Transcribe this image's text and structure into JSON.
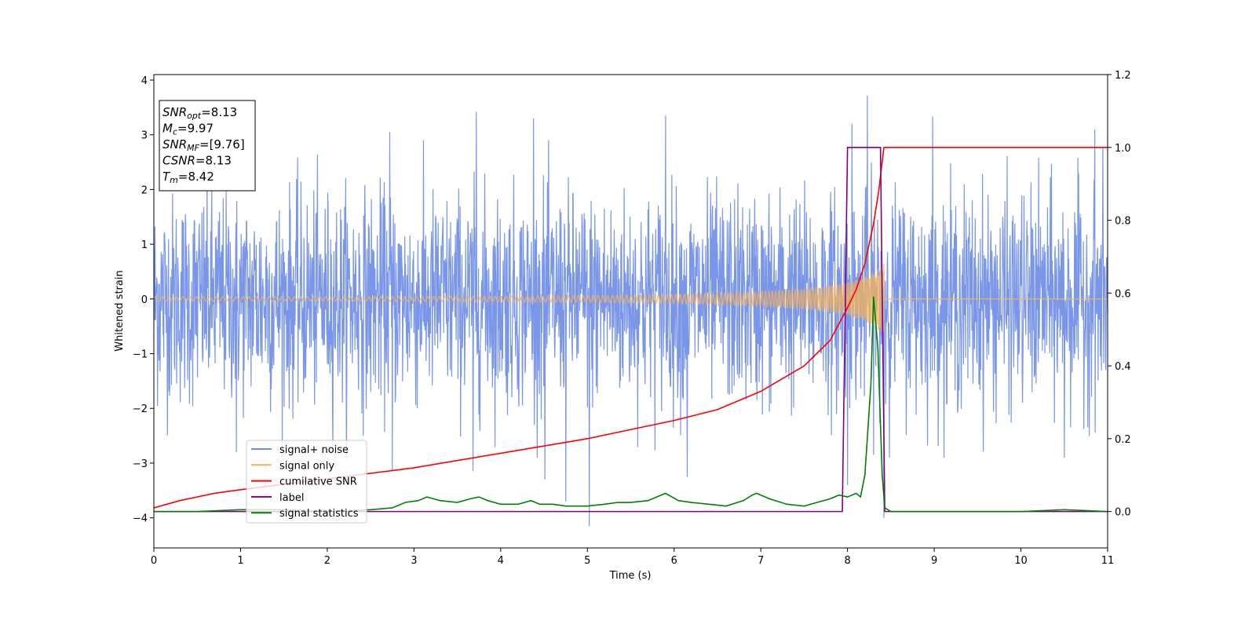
{
  "chart_data": {
    "type": "line",
    "xlabel": "Time (s)",
    "ylabel_left": "Whitened strain",
    "xlim": [
      0,
      11
    ],
    "ylim_left": [
      -4.55,
      4.1
    ],
    "ylim_right": [
      -0.1,
      1.2
    ],
    "x_ticks": [
      0,
      1,
      2,
      3,
      4,
      5,
      6,
      7,
      8,
      9,
      10,
      11
    ],
    "y_ticks_left": [
      {
        "v": 4,
        "label": "4"
      },
      {
        "v": 3,
        "label": "3"
      },
      {
        "v": 2,
        "label": "2"
      },
      {
        "v": 1,
        "label": "1"
      },
      {
        "v": 0,
        "label": "0"
      },
      {
        "v": -1,
        "label": "−1"
      },
      {
        "v": -2,
        "label": "−2"
      },
      {
        "v": -3,
        "label": "−3"
      },
      {
        "v": -4,
        "label": "−4"
      }
    ],
    "y_ticks_right": [
      {
        "v": 1.2,
        "label": "1.2"
      },
      {
        "v": 1.0,
        "label": "1.0"
      },
      {
        "v": 0.8,
        "label": "0.8"
      },
      {
        "v": 0.6,
        "label": "0.6"
      },
      {
        "v": 0.4,
        "label": "0.4"
      },
      {
        "v": 0.2,
        "label": "0.2"
      },
      {
        "v": 0.0,
        "label": "0.0"
      }
    ],
    "annotation": [
      {
        "main": "SNR",
        "sub": "opt",
        "rest": "=8.13"
      },
      {
        "main": "M",
        "sub": "c",
        "rest": "=9.97"
      },
      {
        "main": "SNR",
        "sub": "MF",
        "rest": "=[9.76]"
      },
      {
        "main": "CSNR",
        "sub": "",
        "rest": "=8.13"
      },
      {
        "main": "T",
        "sub": "m",
        "rest": "=8.42"
      }
    ],
    "legend_position": "lower-left",
    "series": [
      {
        "name": "signal+ noise",
        "color": "#6a8be6",
        "axis": "left",
        "kind": "noise",
        "sigma": 0.95,
        "t_end": 11.0,
        "spikes": [
          {
            "x": 8.23,
            "y": 3.72
          },
          {
            "x": 3.72,
            "y": 3.42
          },
          {
            "x": 5.9,
            "y": 3.35
          },
          {
            "x": 8.98,
            "y": 3.33
          },
          {
            "x": 4.38,
            "y": 3.3
          },
          {
            "x": 10.85,
            "y": 3.1
          },
          {
            "x": 2.72,
            "y": 3.05
          },
          {
            "x": 8.05,
            "y": 3.2
          },
          {
            "x": 5.02,
            "y": -4.15
          },
          {
            "x": 4.75,
            "y": -3.7
          },
          {
            "x": 8.42,
            "y": -4.0
          },
          {
            "x": 3.68,
            "y": -3.15
          },
          {
            "x": 2.75,
            "y": -3.15
          },
          {
            "x": 8.0,
            "y": -3.4
          },
          {
            "x": 4.51,
            "y": -3.3
          },
          {
            "x": 10.5,
            "y": -2.9
          },
          {
            "x": 0.95,
            "y": -2.8
          },
          {
            "x": 6.15,
            "y": -3.25
          }
        ]
      },
      {
        "name": "signal only",
        "color": "#f5b25a",
        "axis": "left",
        "kind": "chirp",
        "amp_pairs": [
          [
            0,
            0.04
          ],
          [
            2,
            0.04
          ],
          [
            4,
            0.05
          ],
          [
            5,
            0.06
          ],
          [
            6,
            0.08
          ],
          [
            6.5,
            0.1
          ],
          [
            7,
            0.13
          ],
          [
            7.5,
            0.18
          ],
          [
            7.8,
            0.24
          ],
          [
            8.0,
            0.3
          ],
          [
            8.2,
            0.4
          ],
          [
            8.3,
            0.5
          ],
          [
            8.38,
            0.6
          ],
          [
            8.42,
            0.65
          ]
        ],
        "t_merge": 8.42,
        "t_end": 11.0
      },
      {
        "name": "cumilative SNR",
        "color": "#ff0000",
        "axis": "right",
        "x": [
          0,
          0.3,
          0.7,
          1.0,
          2.0,
          3.0,
          4.0,
          5.0,
          6.0,
          6.5,
          7.0,
          7.5,
          7.8,
          8.0,
          8.1,
          8.2,
          8.3,
          8.36,
          8.42,
          11.0
        ],
        "y": [
          0.01,
          0.03,
          0.05,
          0.06,
          0.09,
          0.12,
          0.16,
          0.2,
          0.25,
          0.28,
          0.33,
          0.4,
          0.47,
          0.56,
          0.61,
          0.68,
          0.79,
          0.88,
          1.0,
          1.0
        ]
      },
      {
        "name": "label",
        "color": "#800080",
        "axis": "right",
        "x": [
          0,
          7.94,
          8.0,
          8.38,
          8.43,
          11.0
        ],
        "y": [
          0,
          0,
          1,
          1,
          0,
          0
        ]
      },
      {
        "name": "signal statistics",
        "color": "#008000",
        "axis": "right",
        "x": [
          0,
          0.5,
          1.0,
          1.5,
          2.0,
          2.5,
          2.75,
          2.9,
          3.05,
          3.15,
          3.3,
          3.5,
          3.65,
          3.75,
          3.85,
          4.0,
          4.2,
          4.35,
          4.45,
          4.6,
          4.75,
          5.0,
          5.2,
          5.35,
          5.5,
          5.7,
          5.85,
          5.9,
          6.05,
          6.2,
          6.4,
          6.6,
          6.8,
          6.9,
          6.95,
          7.1,
          7.3,
          7.5,
          7.65,
          7.8,
          7.9,
          8.0,
          8.1,
          8.15,
          8.2,
          8.27,
          8.3,
          8.35,
          8.4,
          8.43,
          8.5,
          9.0,
          10.0,
          10.5,
          11.0
        ],
        "y": [
          0.0,
          0.0,
          0.005,
          0.005,
          0.0,
          0.005,
          0.01,
          0.025,
          0.03,
          0.04,
          0.03,
          0.025,
          0.035,
          0.04,
          0.03,
          0.02,
          0.02,
          0.03,
          0.02,
          0.02,
          0.015,
          0.015,
          0.02,
          0.025,
          0.025,
          0.03,
          0.045,
          0.05,
          0.03,
          0.025,
          0.02,
          0.015,
          0.03,
          0.045,
          0.05,
          0.035,
          0.02,
          0.015,
          0.025,
          0.035,
          0.045,
          0.04,
          0.05,
          0.04,
          0.1,
          0.35,
          0.59,
          0.45,
          0.1,
          0.01,
          0.0,
          0.0,
          0.0,
          0.005,
          0.0
        ]
      }
    ]
  }
}
